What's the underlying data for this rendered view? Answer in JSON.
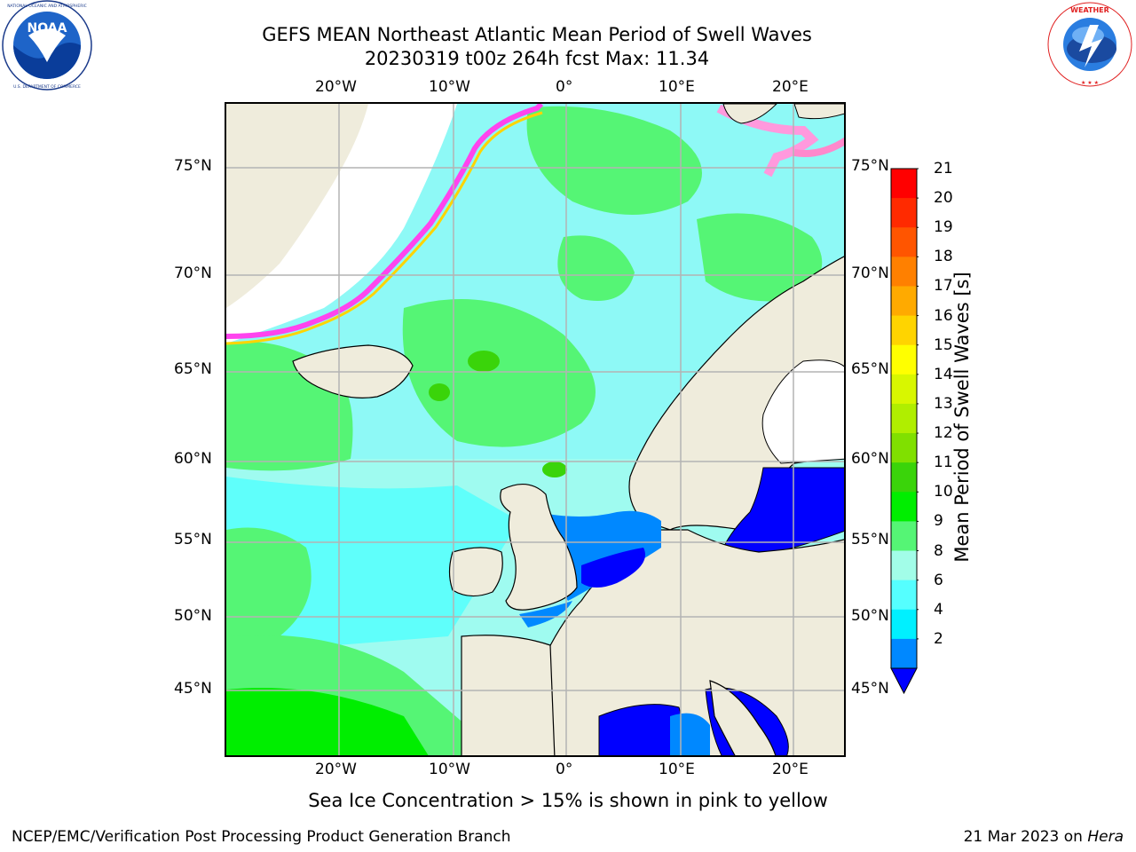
{
  "title_line1": "GEFS MEAN Northeast Atlantic Mean Period of Swell Waves",
  "title_line2": "20230319 t00z 264h fcst   Max: 11.34",
  "lon_ticks": [
    "20°W",
    "10°W",
    "0°",
    "10°E",
    "20°E"
  ],
  "lat_ticks": [
    "75°N",
    "70°N",
    "65°N",
    "60°N",
    "55°N",
    "50°N",
    "45°N"
  ],
  "colorbar": {
    "title": "Mean Period of Swell Waves [s]",
    "labels": [
      "21",
      "20",
      "19",
      "18",
      "17",
      "16",
      "15",
      "14",
      "13",
      "12",
      "11",
      "10",
      "9",
      "8",
      "6",
      "4",
      "2"
    ],
    "colors": [
      "#ff0000",
      "#ff2a00",
      "#ff5500",
      "#ff8000",
      "#ffaa00",
      "#ffd400",
      "#ffff00",
      "#d8f700",
      "#b0ee00",
      "#80e000",
      "#3ad40a",
      "#00ee00",
      "#55f575",
      "#a2fde8",
      "#55ffff",
      "#00f0ff",
      "#0088ff",
      "#0000ff"
    ]
  },
  "note": "Sea Ice Concentration > 15% is shown in pink to yellow",
  "footer_left": "NCEP/EMC/Verification Post Processing Product Generation Branch",
  "footer_date": "21 Mar 2023 on",
  "footer_host": "Hera",
  "logos": {
    "noaa": {
      "text": "NOAA",
      "ring_text": "NATIONAL OCEANIC AND ATMOSPHERIC ADMINISTRATION · U.S. DEPARTMENT OF COMMERCE"
    },
    "nws": {
      "ring_text": "NATIONAL WEATHER SERVICE"
    }
  }
}
